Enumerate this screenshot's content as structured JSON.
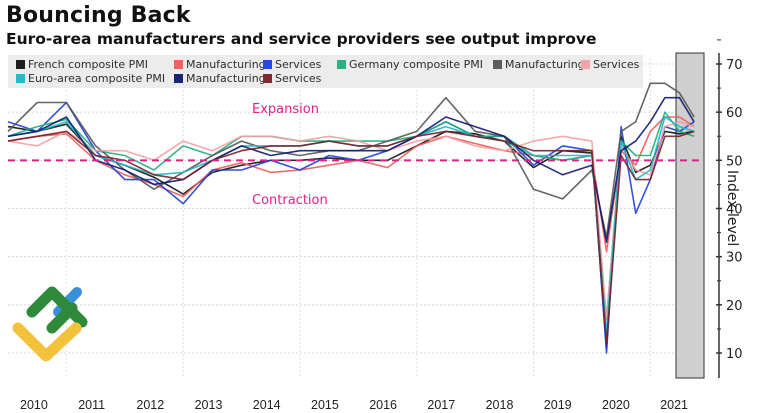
{
  "header": {
    "title": "Bouncing Back",
    "subtitle": "Euro-area manufacturers and service providers see output improve"
  },
  "annotations": {
    "expansion": "Expansion",
    "contraction": "Contraction"
  },
  "logo": {
    "icon": "brokerage-logo-icon"
  },
  "chart_data": {
    "type": "line",
    "title": "Bouncing Back",
    "subtitle": "Euro-area manufacturers and service providers see output improve",
    "xlabel": "",
    "ylabel": "Index level",
    "ylim": [
      5,
      72
    ],
    "yticks": [
      10,
      20,
      30,
      40,
      50,
      60,
      70
    ],
    "xticks": [
      "2010",
      "2011",
      "2012",
      "2013",
      "2014",
      "2015",
      "2016",
      "2017",
      "2018",
      "2019",
      "2020",
      "2021"
    ],
    "xlim": [
      2010.0,
      2021.92
    ],
    "grid": true,
    "legend_position": "top",
    "reference_line": {
      "value": 50,
      "color": "#e0218a",
      "style": "dashed"
    },
    "shaded_region": {
      "from": 2021.25,
      "to": 2021.75,
      "color": "#cfcfcf"
    },
    "series": [
      {
        "name": "French composite PMI",
        "color": "#111111",
        "points": [
          [
            2010.0,
            57
          ],
          [
            2010.5,
            56
          ],
          [
            2011.0,
            57.5
          ],
          [
            2011.5,
            51
          ],
          [
            2012.0,
            49
          ],
          [
            2012.5,
            46.5
          ],
          [
            2013.0,
            43
          ],
          [
            2013.5,
            47.5
          ],
          [
            2014.0,
            49
          ],
          [
            2014.5,
            50
          ],
          [
            2015.0,
            50
          ],
          [
            2015.5,
            50.5
          ],
          [
            2016.0,
            50
          ],
          [
            2016.5,
            50
          ],
          [
            2017.0,
            53
          ],
          [
            2017.5,
            56
          ],
          [
            2018.0,
            55.5
          ],
          [
            2018.5,
            54
          ],
          [
            2019.0,
            48.5
          ],
          [
            2019.5,
            52
          ],
          [
            2020.0,
            51.5
          ],
          [
            2020.25,
            11
          ],
          [
            2020.5,
            55
          ],
          [
            2020.75,
            47.5
          ],
          [
            2021.0,
            49
          ],
          [
            2021.25,
            56
          ],
          [
            2021.5,
            55.5
          ],
          [
            2021.75,
            56
          ]
        ]
      },
      {
        "name": "Manufacturing",
        "group": "France",
        "color": "#f05a5a",
        "points": [
          [
            2010.0,
            54
          ],
          [
            2010.5,
            55
          ],
          [
            2011.0,
            55.5
          ],
          [
            2011.5,
            50
          ],
          [
            2012.0,
            47
          ],
          [
            2012.5,
            45
          ],
          [
            2013.0,
            42.5
          ],
          [
            2013.5,
            48
          ],
          [
            2014.0,
            49.5
          ],
          [
            2014.5,
            47.5
          ],
          [
            2015.0,
            48
          ],
          [
            2015.5,
            49
          ],
          [
            2016.0,
            50
          ],
          [
            2016.5,
            48.5
          ],
          [
            2017.0,
            53
          ],
          [
            2017.5,
            55
          ],
          [
            2018.0,
            53.5
          ],
          [
            2018.5,
            52
          ],
          [
            2019.0,
            51
          ],
          [
            2019.5,
            50
          ],
          [
            2020.0,
            51
          ],
          [
            2020.25,
            31
          ],
          [
            2020.5,
            52
          ],
          [
            2020.75,
            49
          ],
          [
            2021.0,
            56
          ],
          [
            2021.25,
            59
          ],
          [
            2021.5,
            59
          ],
          [
            2021.75,
            57
          ]
        ]
      },
      {
        "name": "Services",
        "group": "France",
        "color": "#1f3fd6",
        "points": [
          [
            2010.0,
            58
          ],
          [
            2010.5,
            56
          ],
          [
            2011.0,
            62
          ],
          [
            2011.5,
            52
          ],
          [
            2012.0,
            46
          ],
          [
            2012.5,
            46
          ],
          [
            2013.0,
            41
          ],
          [
            2013.5,
            48
          ],
          [
            2014.0,
            48
          ],
          [
            2014.5,
            50
          ],
          [
            2015.0,
            48
          ],
          [
            2015.5,
            51
          ],
          [
            2016.0,
            50
          ],
          [
            2016.5,
            52
          ],
          [
            2017.0,
            55
          ],
          [
            2017.5,
            58
          ],
          [
            2018.0,
            55
          ],
          [
            2018.5,
            55
          ],
          [
            2019.0,
            49
          ],
          [
            2019.5,
            53
          ],
          [
            2020.0,
            52
          ],
          [
            2020.25,
            10
          ],
          [
            2020.5,
            57
          ],
          [
            2020.75,
            39
          ],
          [
            2021.0,
            46
          ],
          [
            2021.25,
            57
          ],
          [
            2021.5,
            56
          ],
          [
            2021.75,
            58
          ]
        ]
      },
      {
        "name": "Germany composite PMI",
        "color": "#1fae7a",
        "points": [
          [
            2010.0,
            55
          ],
          [
            2010.5,
            57
          ],
          [
            2011.0,
            58.5
          ],
          [
            2011.5,
            52
          ],
          [
            2012.0,
            51
          ],
          [
            2012.5,
            48
          ],
          [
            2013.0,
            53
          ],
          [
            2013.5,
            51
          ],
          [
            2014.0,
            55
          ],
          [
            2014.5,
            55
          ],
          [
            2015.0,
            54
          ],
          [
            2015.5,
            54
          ],
          [
            2016.0,
            54
          ],
          [
            2016.5,
            54
          ],
          [
            2017.0,
            55
          ],
          [
            2017.5,
            58
          ],
          [
            2018.0,
            55
          ],
          [
            2018.5,
            55
          ],
          [
            2019.0,
            51
          ],
          [
            2019.5,
            50
          ],
          [
            2020.0,
            51
          ],
          [
            2020.25,
            17
          ],
          [
            2020.5,
            54
          ],
          [
            2020.75,
            51
          ],
          [
            2021.0,
            51
          ],
          [
            2021.25,
            60
          ],
          [
            2021.5,
            56
          ],
          [
            2021.75,
            55
          ]
        ]
      },
      {
        "name": "Manufacturing",
        "group": "Germany",
        "color": "#555555",
        "points": [
          [
            2010.0,
            56
          ],
          [
            2010.5,
            62
          ],
          [
            2011.0,
            62
          ],
          [
            2011.5,
            53
          ],
          [
            2012.0,
            48
          ],
          [
            2012.5,
            44
          ],
          [
            2013.0,
            47.5
          ],
          [
            2013.5,
            51
          ],
          [
            2014.0,
            54
          ],
          [
            2014.5,
            52
          ],
          [
            2015.0,
            51
          ],
          [
            2015.5,
            52
          ],
          [
            2016.0,
            52
          ],
          [
            2016.5,
            54
          ],
          [
            2017.0,
            56
          ],
          [
            2017.5,
            63
          ],
          [
            2018.0,
            56
          ],
          [
            2018.5,
            55
          ],
          [
            2019.0,
            44
          ],
          [
            2019.5,
            42
          ],
          [
            2020.0,
            48
          ],
          [
            2020.25,
            34
          ],
          [
            2020.5,
            56
          ],
          [
            2020.75,
            58
          ],
          [
            2021.0,
            66
          ],
          [
            2021.25,
            66
          ],
          [
            2021.5,
            64
          ],
          [
            2021.75,
            59
          ]
        ]
      },
      {
        "name": "Services",
        "group": "Germany",
        "color": "#f4a0a0",
        "points": [
          [
            2010.0,
            54
          ],
          [
            2010.5,
            53
          ],
          [
            2011.0,
            56
          ],
          [
            2011.5,
            52
          ],
          [
            2012.0,
            52
          ],
          [
            2012.5,
            50
          ],
          [
            2013.0,
            54
          ],
          [
            2013.5,
            52
          ],
          [
            2014.0,
            55
          ],
          [
            2014.5,
            55
          ],
          [
            2015.0,
            54
          ],
          [
            2015.5,
            55
          ],
          [
            2016.0,
            54
          ],
          [
            2016.5,
            52
          ],
          [
            2017.0,
            54
          ],
          [
            2017.5,
            55
          ],
          [
            2018.0,
            53
          ],
          [
            2018.5,
            52
          ],
          [
            2019.0,
            54
          ],
          [
            2019.5,
            55
          ],
          [
            2020.0,
            54
          ],
          [
            2020.25,
            17
          ],
          [
            2020.5,
            53
          ],
          [
            2020.75,
            48
          ],
          [
            2021.0,
            47
          ],
          [
            2021.25,
            57
          ],
          [
            2021.5,
            58
          ],
          [
            2021.75,
            57
          ]
        ]
      },
      {
        "name": "Euro-area composite PMI",
        "color": "#1bb8c8",
        "points": [
          [
            2010.0,
            55
          ],
          [
            2010.5,
            56
          ],
          [
            2011.0,
            58
          ],
          [
            2011.5,
            51
          ],
          [
            2012.0,
            49
          ],
          [
            2012.5,
            47
          ],
          [
            2013.0,
            47.5
          ],
          [
            2013.5,
            50
          ],
          [
            2014.0,
            53
          ],
          [
            2014.5,
            53
          ],
          [
            2015.0,
            53
          ],
          [
            2015.5,
            54
          ],
          [
            2016.0,
            53
          ],
          [
            2016.5,
            53
          ],
          [
            2017.0,
            55
          ],
          [
            2017.5,
            57
          ],
          [
            2018.0,
            55
          ],
          [
            2018.5,
            54
          ],
          [
            2019.0,
            51
          ],
          [
            2019.5,
            51
          ],
          [
            2020.0,
            51
          ],
          [
            2020.25,
            14
          ],
          [
            2020.5,
            54
          ],
          [
            2020.75,
            46
          ],
          [
            2021.0,
            48
          ],
          [
            2021.25,
            59
          ],
          [
            2021.5,
            57
          ],
          [
            2021.75,
            56
          ]
        ]
      },
      {
        "name": "Manufacturing",
        "group": "Euro-area",
        "color": "#0d1a6e",
        "points": [
          [
            2010.0,
            55
          ],
          [
            2010.5,
            56
          ],
          [
            2011.0,
            59
          ],
          [
            2011.5,
            50
          ],
          [
            2012.0,
            48
          ],
          [
            2012.5,
            45
          ],
          [
            2013.0,
            46
          ],
          [
            2013.5,
            50
          ],
          [
            2014.0,
            53
          ],
          [
            2014.5,
            51
          ],
          [
            2015.0,
            52
          ],
          [
            2015.5,
            52
          ],
          [
            2016.0,
            52
          ],
          [
            2016.5,
            52
          ],
          [
            2017.0,
            55
          ],
          [
            2017.5,
            59
          ],
          [
            2018.0,
            57
          ],
          [
            2018.5,
            55
          ],
          [
            2019.0,
            50
          ],
          [
            2019.5,
            47
          ],
          [
            2020.0,
            49
          ],
          [
            2020.25,
            33
          ],
          [
            2020.5,
            52
          ],
          [
            2020.75,
            54
          ],
          [
            2021.0,
            58
          ],
          [
            2021.25,
            63
          ],
          [
            2021.5,
            63
          ],
          [
            2021.75,
            58
          ]
        ]
      },
      {
        "name": "Services",
        "group": "Euro-area",
        "color": "#7a1f28",
        "points": [
          [
            2010.0,
            54
          ],
          [
            2010.5,
            55
          ],
          [
            2011.0,
            56
          ],
          [
            2011.5,
            51
          ],
          [
            2012.0,
            50
          ],
          [
            2012.5,
            47
          ],
          [
            2013.0,
            46
          ],
          [
            2013.5,
            50
          ],
          [
            2014.0,
            52
          ],
          [
            2014.5,
            53
          ],
          [
            2015.0,
            53
          ],
          [
            2015.5,
            54
          ],
          [
            2016.0,
            53
          ],
          [
            2016.5,
            53
          ],
          [
            2017.0,
            55
          ],
          [
            2017.5,
            56
          ],
          [
            2018.0,
            55
          ],
          [
            2018.5,
            54
          ],
          [
            2019.0,
            52
          ],
          [
            2019.5,
            52
          ],
          [
            2020.0,
            52
          ],
          [
            2020.25,
            12
          ],
          [
            2020.5,
            51
          ],
          [
            2020.75,
            46
          ],
          [
            2021.0,
            46
          ],
          [
            2021.25,
            55
          ],
          [
            2021.5,
            55
          ],
          [
            2021.75,
            56
          ]
        ]
      }
    ],
    "legend": [
      {
        "label": "French composite PMI",
        "color": "#111111"
      },
      {
        "label": "Manufacturing",
        "color": "#f05a5a"
      },
      {
        "label": "Services",
        "color": "#1f3fd6"
      },
      {
        "label": "Germany composite PMI",
        "color": "#1fae7a"
      },
      {
        "label": "Manufacturing",
        "color": "#555555"
      },
      {
        "label": "Services",
        "color": "#f4a0a0"
      },
      {
        "label": "Euro-area composite PMI",
        "color": "#1bb8c8"
      },
      {
        "label": "Manufacturing",
        "color": "#0d1a6e"
      },
      {
        "label": "Services",
        "color": "#7a1f28"
      }
    ]
  }
}
